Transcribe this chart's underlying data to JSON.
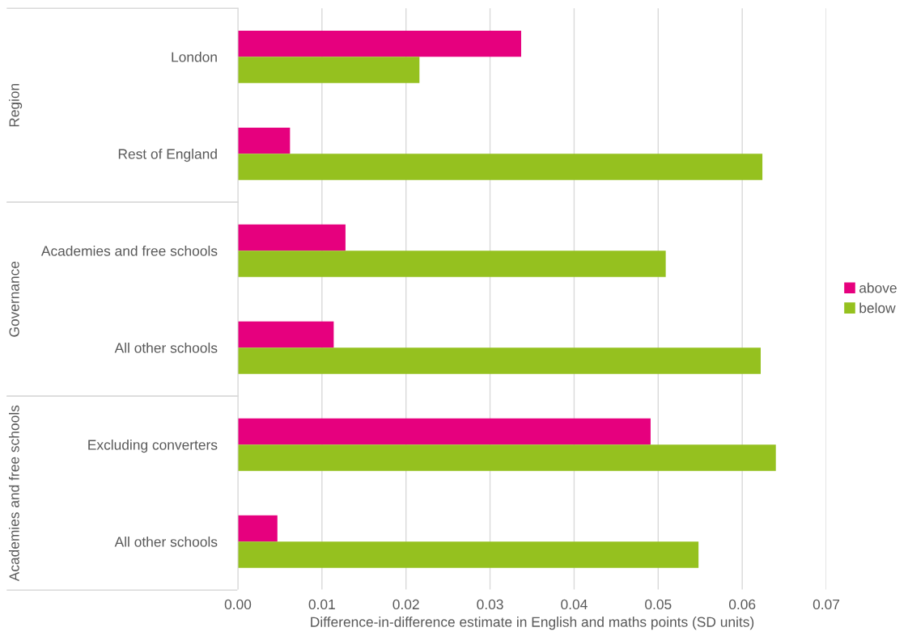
{
  "chart_data": {
    "type": "bar",
    "orientation": "horizontal",
    "xlabel": "Difference-in-difference estimate in English and maths points (SD units)",
    "categories": [
      "London",
      "Rest of England",
      "Academies and free schools",
      "All other schools",
      "Excluding converters",
      "All other schools"
    ],
    "series": [
      {
        "name": "above",
        "color": "#e6007e",
        "values": [
          0.0337,
          0.0062,
          0.0128,
          0.0114,
          0.0491,
          0.0047
        ]
      },
      {
        "name": "below",
        "color": "#95c11f",
        "values": [
          0.0216,
          0.0624,
          0.0509,
          0.0622,
          0.064,
          0.0548
        ]
      }
    ],
    "annotations": [
      "Region",
      "Governance",
      "Academies and free schools"
    ],
    "xlim": [
      0,
      0.07
    ],
    "xticks": [
      {
        "value": 0,
        "label": "0.00"
      },
      {
        "value": 0.01,
        "label": "0.01"
      },
      {
        "value": 0.02,
        "label": "0.02"
      },
      {
        "value": 0.03,
        "label": "0.03"
      },
      {
        "value": 0.04,
        "label": "0.04"
      },
      {
        "value": 0.05,
        "label": "0.05"
      },
      {
        "value": 0.06,
        "label": "0.06"
      },
      {
        "value": 0.07,
        "label": "0.07"
      }
    ],
    "grid": "x",
    "legend": "right"
  }
}
